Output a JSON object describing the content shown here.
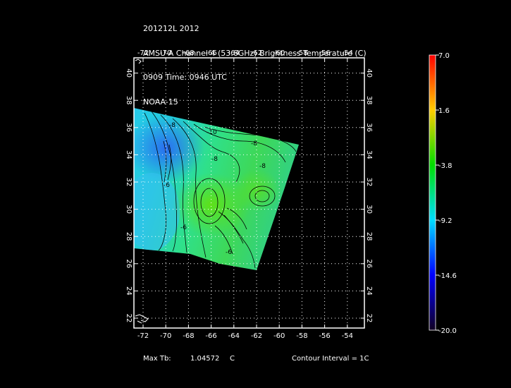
{
  "header": {
    "line1": "201212L 2012",
    "line2": "AMSU-A Channel 4 (53.6GHz) Brightness Temperature (C)",
    "line3": "0909 Time: 0946 UTC",
    "line4": "NOAA-15"
  },
  "map": {
    "lon_ticks": [
      "-72",
      "-70",
      "-68",
      "-66",
      "-64",
      "-62",
      "-60",
      "-58",
      "-56",
      "-54"
    ],
    "lat_ticks": [
      "22",
      "24",
      "26",
      "28",
      "30",
      "32",
      "34",
      "36",
      "38",
      "40"
    ],
    "contour_labels": [
      "-10",
      "-8",
      "-8",
      "-6",
      "-6",
      "-8",
      "-6",
      "-8"
    ],
    "grid": true
  },
  "colorbar": {
    "labels": [
      "7.0",
      "1.6",
      "-3.8",
      "-9.2",
      "-14.6",
      "-20.0"
    ],
    "min": -20.0,
    "max": 7.0
  },
  "footer": {
    "max_tb_label": "Max Tb:",
    "max_tb_value": "1.04572",
    "max_tb_unit": "C",
    "contour_interval": "Contour Interval = 1C"
  }
}
